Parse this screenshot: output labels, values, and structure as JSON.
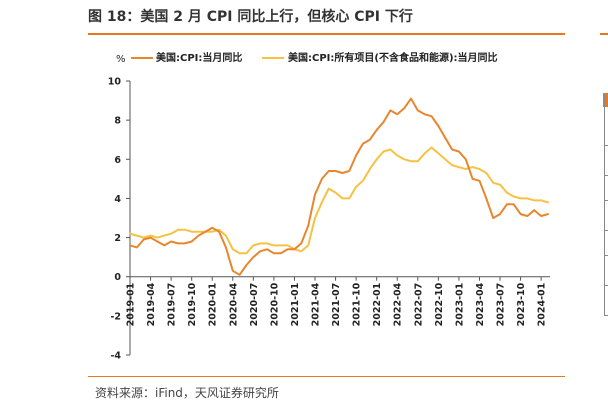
{
  "figure": {
    "title": "图 18：美国 2 月 CPI 同比上行，但核心 CPI 下行",
    "source": "资料来源：iFind，天风证券研究所"
  },
  "colors": {
    "accent": "#e87722",
    "series_cpi": "#e8862e",
    "series_core": "#f5c242"
  },
  "chart_data": {
    "type": "line",
    "unit": "%",
    "ylim": [
      -4,
      10
    ],
    "yticks": [
      -4,
      -2,
      0,
      2,
      4,
      6,
      8,
      10
    ],
    "grid": false,
    "legend_position": "top",
    "x": [
      "2019-01",
      "2019-02",
      "2019-03",
      "2019-04",
      "2019-05",
      "2019-06",
      "2019-07",
      "2019-08",
      "2019-09",
      "2019-10",
      "2019-11",
      "2019-12",
      "2020-01",
      "2020-02",
      "2020-03",
      "2020-04",
      "2020-05",
      "2020-06",
      "2020-07",
      "2020-08",
      "2020-09",
      "2020-10",
      "2020-11",
      "2020-12",
      "2021-01",
      "2021-02",
      "2021-03",
      "2021-04",
      "2021-05",
      "2021-06",
      "2021-07",
      "2021-08",
      "2021-09",
      "2021-10",
      "2021-11",
      "2021-12",
      "2022-01",
      "2022-02",
      "2022-03",
      "2022-04",
      "2022-05",
      "2022-06",
      "2022-07",
      "2022-08",
      "2022-09",
      "2022-10",
      "2022-11",
      "2022-12",
      "2023-01",
      "2023-02",
      "2023-03",
      "2023-04",
      "2023-05",
      "2023-06",
      "2023-07",
      "2023-08",
      "2023-09",
      "2023-10",
      "2023-11",
      "2023-12",
      "2024-01",
      "2024-02"
    ],
    "xtick_labels": [
      "2019-01",
      "2019-04",
      "2019-07",
      "2019-10",
      "2020-01",
      "2020-04",
      "2020-07",
      "2020-10",
      "2021-01",
      "2021-04",
      "2021-07",
      "2021-10",
      "2022-01",
      "2022-04",
      "2022-07",
      "2022-10",
      "2023-01",
      "2023-04",
      "2023-07",
      "2023-10",
      "2024-01"
    ],
    "series": [
      {
        "name": "美国:CPI:当月同比",
        "values": [
          1.6,
          1.5,
          1.9,
          2.0,
          1.8,
          1.6,
          1.8,
          1.7,
          1.7,
          1.8,
          2.1,
          2.3,
          2.5,
          2.3,
          1.5,
          0.3,
          0.1,
          0.6,
          1.0,
          1.3,
          1.4,
          1.2,
          1.2,
          1.4,
          1.4,
          1.7,
          2.6,
          4.2,
          5.0,
          5.4,
          5.4,
          5.3,
          5.4,
          6.2,
          6.8,
          7.0,
          7.5,
          7.9,
          8.5,
          8.3,
          8.6,
          9.1,
          8.5,
          8.3,
          8.2,
          7.7,
          7.1,
          6.5,
          6.4,
          6.0,
          5.0,
          4.9,
          4.0,
          3.0,
          3.2,
          3.7,
          3.7,
          3.2,
          3.1,
          3.4,
          3.1,
          3.2
        ]
      },
      {
        "name": "美国:CPI:所有项目(不含食品和能源):当月同比",
        "values": [
          2.2,
          2.1,
          2.0,
          2.1,
          2.0,
          2.1,
          2.2,
          2.4,
          2.4,
          2.3,
          2.3,
          2.3,
          2.3,
          2.4,
          2.1,
          1.4,
          1.2,
          1.2,
          1.6,
          1.7,
          1.7,
          1.6,
          1.6,
          1.6,
          1.4,
          1.3,
          1.6,
          3.0,
          3.8,
          4.5,
          4.3,
          4.0,
          4.0,
          4.6,
          4.9,
          5.5,
          6.0,
          6.4,
          6.5,
          6.2,
          6.0,
          5.9,
          5.9,
          6.3,
          6.6,
          6.3,
          6.0,
          5.7,
          5.6,
          5.5,
          5.6,
          5.5,
          5.3,
          4.8,
          4.7,
          4.3,
          4.1,
          4.0,
          4.0,
          3.9,
          3.9,
          3.8
        ]
      }
    ]
  }
}
